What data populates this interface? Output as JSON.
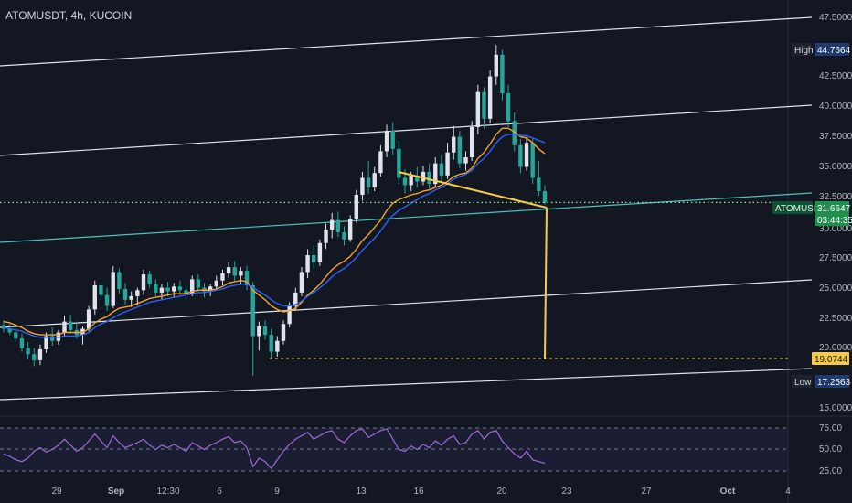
{
  "chart_data": {
    "type": "candlestick",
    "title": "ATOMUSDT, 4h, KUCOIN",
    "y_axis": {
      "ticks": [
        "47.5000",
        "42.5000",
        "40.0000",
        "37.5000",
        "35.0000",
        "32.5000",
        "30.0000",
        "27.5000",
        "25.0000",
        "22.5000",
        "20.0000",
        "15.0000"
      ],
      "ylim": [
        14.5,
        48.2
      ]
    },
    "x_axis": {
      "tick_labels": [
        "29",
        "Sep",
        "12:30",
        "6",
        "9",
        "13",
        "16",
        "20",
        "23",
        "27",
        "Oct",
        "4"
      ]
    },
    "markers": {
      "high": {
        "label": "High",
        "value": "44.7664"
      },
      "low": {
        "label": "Low",
        "value": "17.2563"
      },
      "last": {
        "symbol": "ATOMUSDT",
        "price": "31.6647",
        "countdown": "03:44:35",
        "value": 31.6647
      },
      "target": {
        "value": "19.0744"
      }
    },
    "candles": [
      [
        21.5,
        21.9,
        20.9,
        21.2
      ],
      [
        21.2,
        21.6,
        20.7,
        20.9
      ],
      [
        20.9,
        21.2,
        20.1,
        20.4
      ],
      [
        20.4,
        20.8,
        19.3,
        19.6
      ],
      [
        19.6,
        20.1,
        18.7,
        19.1
      ],
      [
        19.1,
        19.6,
        18.1,
        18.6
      ],
      [
        18.6,
        19.9,
        18.2,
        19.5
      ],
      [
        19.5,
        20.9,
        19.2,
        20.6
      ],
      [
        20.6,
        21.3,
        19.8,
        20.2
      ],
      [
        20.2,
        21.1,
        19.9,
        20.9
      ],
      [
        20.9,
        22.3,
        20.6,
        21.8
      ],
      [
        21.8,
        22.4,
        20.8,
        21.1
      ],
      [
        21.1,
        21.8,
        20.4,
        20.7
      ],
      [
        20.7,
        21.4,
        19.9,
        21.2
      ],
      [
        21.2,
        23.1,
        21.0,
        22.8
      ],
      [
        22.8,
        25.2,
        22.4,
        24.8
      ],
      [
        24.8,
        25.1,
        23.6,
        24.0
      ],
      [
        24.0,
        24.6,
        22.7,
        23.1
      ],
      [
        23.1,
        26.4,
        22.9,
        25.9
      ],
      [
        25.9,
        26.2,
        24.1,
        24.5
      ],
      [
        24.5,
        25.0,
        23.2,
        23.6
      ],
      [
        23.6,
        24.3,
        23.0,
        23.9
      ],
      [
        23.9,
        24.6,
        23.2,
        24.4
      ],
      [
        24.4,
        26.1,
        24.0,
        25.7
      ],
      [
        25.7,
        26.0,
        24.6,
        24.9
      ],
      [
        24.9,
        25.3,
        23.9,
        24.2
      ],
      [
        24.2,
        24.9,
        23.6,
        24.6
      ],
      [
        24.6,
        25.1,
        23.9,
        24.3
      ],
      [
        24.3,
        25.0,
        23.8,
        24.7
      ],
      [
        24.7,
        25.2,
        24.0,
        24.4
      ],
      [
        24.4,
        24.8,
        23.7,
        24.1
      ],
      [
        24.1,
        25.6,
        23.9,
        25.3
      ],
      [
        25.3,
        25.7,
        24.3,
        24.6
      ],
      [
        24.6,
        25.0,
        23.8,
        24.3
      ],
      [
        24.3,
        24.9,
        23.9,
        24.7
      ],
      [
        24.7,
        25.6,
        24.4,
        25.2
      ],
      [
        25.2,
        26.1,
        24.8,
        25.8
      ],
      [
        25.8,
        26.7,
        25.4,
        26.3
      ],
      [
        26.3,
        26.8,
        25.1,
        25.6
      ],
      [
        25.6,
        26.3,
        24.9,
        26.0
      ],
      [
        26.0,
        26.4,
        24.4,
        24.8
      ],
      [
        24.8,
        25.1,
        17.3,
        20.6
      ],
      [
        20.6,
        21.8,
        19.4,
        21.4
      ],
      [
        21.4,
        21.9,
        20.3,
        20.7
      ],
      [
        20.7,
        21.2,
        18.7,
        19.3
      ],
      [
        19.3,
        20.6,
        18.9,
        20.2
      ],
      [
        20.2,
        21.9,
        19.9,
        21.6
      ],
      [
        21.6,
        23.4,
        21.3,
        23.1
      ],
      [
        23.1,
        24.6,
        22.7,
        24.2
      ],
      [
        24.2,
        26.3,
        23.9,
        25.9
      ],
      [
        25.9,
        27.8,
        25.4,
        27.3
      ],
      [
        27.3,
        28.1,
        26.2,
        26.7
      ],
      [
        26.7,
        28.6,
        26.4,
        28.3
      ],
      [
        28.3,
        29.9,
        27.8,
        29.4
      ],
      [
        29.4,
        30.8,
        28.7,
        30.2
      ],
      [
        30.2,
        30.9,
        28.8,
        29.2
      ],
      [
        29.2,
        29.7,
        28.1,
        28.6
      ],
      [
        28.6,
        30.6,
        28.4,
        30.3
      ],
      [
        30.3,
        32.7,
        30.0,
        32.3
      ],
      [
        32.3,
        34.2,
        31.8,
        33.7
      ],
      [
        33.7,
        35.1,
        32.4,
        32.9
      ],
      [
        32.9,
        34.6,
        32.6,
        34.1
      ],
      [
        34.1,
        36.4,
        33.8,
        35.9
      ],
      [
        35.9,
        38.1,
        35.4,
        37.6
      ],
      [
        37.6,
        38.3,
        35.6,
        36.1
      ],
      [
        36.1,
        36.8,
        33.2,
        33.7
      ],
      [
        33.7,
        34.4,
        32.4,
        33.1
      ],
      [
        33.1,
        34.2,
        32.6,
        33.9
      ],
      [
        33.9,
        34.6,
        32.9,
        33.4
      ],
      [
        33.4,
        34.7,
        33.1,
        34.2
      ],
      [
        34.2,
        34.9,
        32.8,
        33.2
      ],
      [
        33.2,
        35.4,
        32.9,
        34.9
      ],
      [
        34.9,
        35.6,
        33.4,
        33.9
      ],
      [
        33.9,
        36.6,
        33.6,
        35.8
      ],
      [
        35.8,
        38.0,
        35.2,
        37.1
      ],
      [
        37.1,
        37.6,
        34.5,
        34.9
      ],
      [
        34.9,
        35.9,
        34.3,
        35.4
      ],
      [
        35.4,
        38.4,
        35.1,
        37.9
      ],
      [
        37.9,
        41.4,
        37.3,
        40.8
      ],
      [
        40.8,
        41.2,
        37.8,
        38.6
      ],
      [
        38.6,
        42.6,
        38.2,
        42.1
      ],
      [
        42.1,
        44.7,
        41.4,
        43.9
      ],
      [
        43.9,
        44.3,
        40.1,
        40.7
      ],
      [
        40.7,
        41.4,
        37.9,
        38.4
      ],
      [
        38.4,
        39.1,
        35.9,
        36.4
      ],
      [
        36.4,
        36.9,
        34.1,
        34.6
      ],
      [
        34.6,
        37.1,
        34.3,
        36.6
      ],
      [
        36.6,
        37.0,
        33.2,
        33.7
      ],
      [
        33.7,
        35.1,
        32.2,
        32.6
      ],
      [
        32.6,
        33.1,
        31.5,
        31.66
      ]
    ],
    "ema_fast": [
      21.8,
      21.7,
      21.5,
      21.3,
      21.0,
      20.8,
      20.7,
      20.7,
      20.7,
      20.7,
      20.9,
      20.9,
      20.9,
      20.9,
      21.2,
      21.7,
      22.0,
      22.2,
      22.6,
      22.9,
      23.0,
      23.1,
      23.3,
      23.5,
      23.7,
      23.8,
      23.9,
      24.0,
      24.1,
      24.1,
      24.1,
      24.3,
      24.4,
      24.4,
      24.4,
      24.5,
      24.7,
      25.0,
      25.1,
      25.2,
      25.1,
      24.4,
      24.0,
      23.6,
      23.1,
      22.8,
      22.6,
      22.7,
      22.9,
      23.4,
      24.0,
      24.4,
      24.9,
      25.5,
      26.1,
      26.5,
      26.8,
      27.2,
      27.8,
      28.5,
      29.0,
      29.6,
      30.2,
      31.0,
      31.6,
      31.9,
      32.1,
      32.3,
      32.4,
      32.6,
      32.7,
      32.9,
      33.1,
      33.4,
      33.8,
      34.0,
      34.1,
      34.5,
      35.3,
      35.8,
      36.5,
      37.3,
      37.8,
      37.8,
      37.5,
      37.1,
      37.0,
      36.6,
      36.1,
      35.7
    ],
    "ema_slow": [
      21.3,
      21.2,
      21.1,
      21.0,
      20.8,
      20.6,
      20.5,
      20.5,
      20.5,
      20.5,
      20.6,
      20.6,
      20.6,
      20.7,
      20.9,
      21.3,
      21.6,
      21.8,
      22.1,
      22.4,
      22.6,
      22.8,
      23.0,
      23.2,
      23.4,
      23.5,
      23.6,
      23.7,
      23.8,
      23.9,
      24.0,
      24.1,
      24.2,
      24.2,
      24.3,
      24.4,
      24.5,
      24.7,
      24.8,
      24.9,
      24.9,
      24.6,
      24.3,
      24.0,
      23.6,
      23.3,
      23.1,
      23.1,
      23.2,
      23.5,
      23.9,
      24.2,
      24.6,
      25.0,
      25.5,
      25.9,
      26.2,
      26.6,
      27.1,
      27.7,
      28.2,
      28.7,
      29.3,
      30.0,
      30.6,
      31.0,
      31.3,
      31.6,
      31.9,
      32.2,
      32.4,
      32.7,
      32.9,
      33.2,
      33.6,
      33.8,
      34.0,
      34.3,
      34.9,
      35.3,
      35.9,
      36.6,
      37.1,
      37.3,
      37.3,
      37.2,
      37.2,
      37.0,
      36.8,
      36.6
    ],
    "rsi": {
      "levels": [
        "75.00",
        "50.00",
        "25.00"
      ],
      "values": [
        45,
        42,
        38,
        36,
        40,
        48,
        52,
        47,
        50,
        55,
        62,
        55,
        48,
        52,
        60,
        68,
        60,
        52,
        66,
        58,
        52,
        55,
        58,
        62,
        55,
        50,
        55,
        52,
        56,
        52,
        48,
        58,
        54,
        50,
        55,
        58,
        62,
        65,
        58,
        60,
        52,
        30,
        40,
        36,
        28,
        38,
        48,
        56,
        62,
        66,
        70,
        62,
        66,
        70,
        72,
        62,
        58,
        66,
        72,
        74,
        64,
        68,
        72,
        74,
        62,
        50,
        48,
        54,
        50,
        56,
        52,
        60,
        55,
        62,
        66,
        56,
        58,
        68,
        72,
        62,
        70,
        72,
        60,
        52,
        45,
        40,
        48,
        38,
        36,
        34
      ]
    }
  }
}
